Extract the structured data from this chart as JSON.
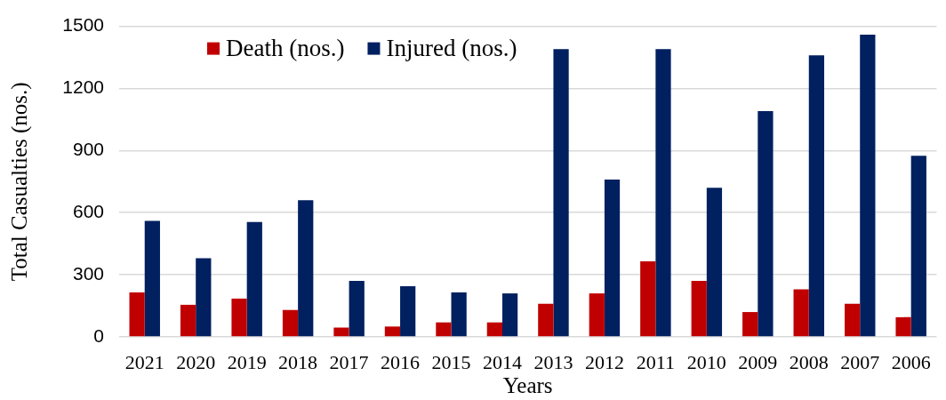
{
  "chart_data": {
    "type": "bar",
    "xlabel": "Years",
    "ylabel": "Total Casualties (nos.)",
    "categories": [
      "2021",
      "2020",
      "2019",
      "2018",
      "2017",
      "2016",
      "2015",
      "2014",
      "2013",
      "2012",
      "2011",
      "2010",
      "2009",
      "2008",
      "2007",
      "2006"
    ],
    "series": [
      {
        "name": "Death (nos.)",
        "color": "#c00000",
        "values": [
          215,
          155,
          185,
          130,
          45,
          50,
          70,
          70,
          160,
          210,
          365,
          270,
          120,
          230,
          160,
          95
        ]
      },
      {
        "name": "Injured (nos.)",
        "color": "#002060",
        "values": [
          560,
          380,
          555,
          660,
          270,
          245,
          215,
          210,
          1390,
          760,
          1390,
          720,
          1090,
          1360,
          1460,
          875
        ]
      }
    ],
    "ylim": [
      0,
      1500
    ],
    "yticks": [
      0,
      300,
      600,
      900,
      1200,
      1500
    ],
    "grid": "y",
    "legend": "top left"
  }
}
